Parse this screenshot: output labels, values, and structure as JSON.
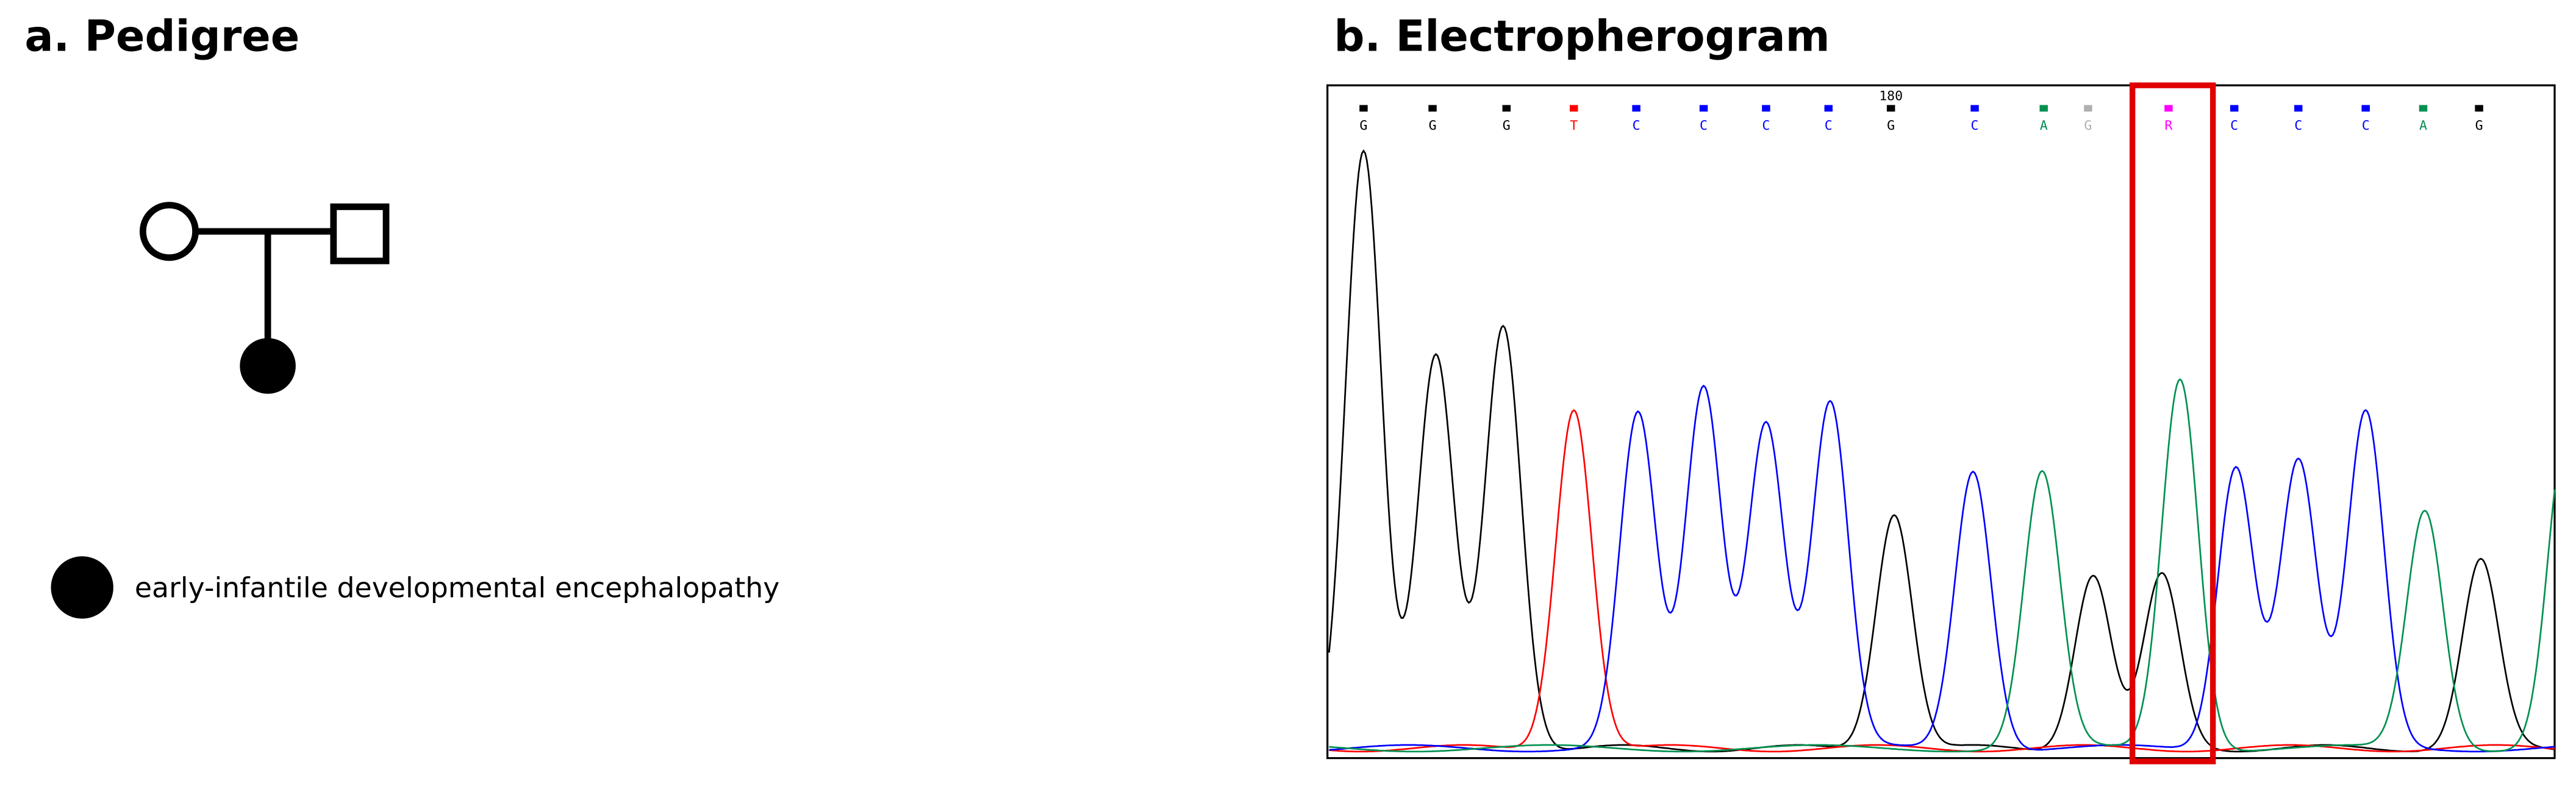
{
  "panels": [
    {
      "title": "a. Pedigree",
      "legend": "early-infantile developmental encephalopathy"
    },
    {
      "title": "b. Electropherogram",
      "position_label": "180",
      "base_calls": [
        "G",
        "G",
        "G",
        "T",
        "C",
        "C",
        "C",
        "C",
        "G",
        "C",
        "A",
        "G",
        "R",
        "C",
        "C",
        "C",
        "A",
        "G"
      ],
      "base_call_colors": [
        "#000000",
        "#000000",
        "#000000",
        "#ff0000",
        "#0000ff",
        "#0000ff",
        "#0000ff",
        "#0000ff",
        "#000000",
        "#0000ff",
        "#009050",
        "#b0b0b0",
        "#ff00ff",
        "#0000ff",
        "#0000ff",
        "#0000ff",
        "#009050",
        "#000000"
      ]
    }
  ]
}
